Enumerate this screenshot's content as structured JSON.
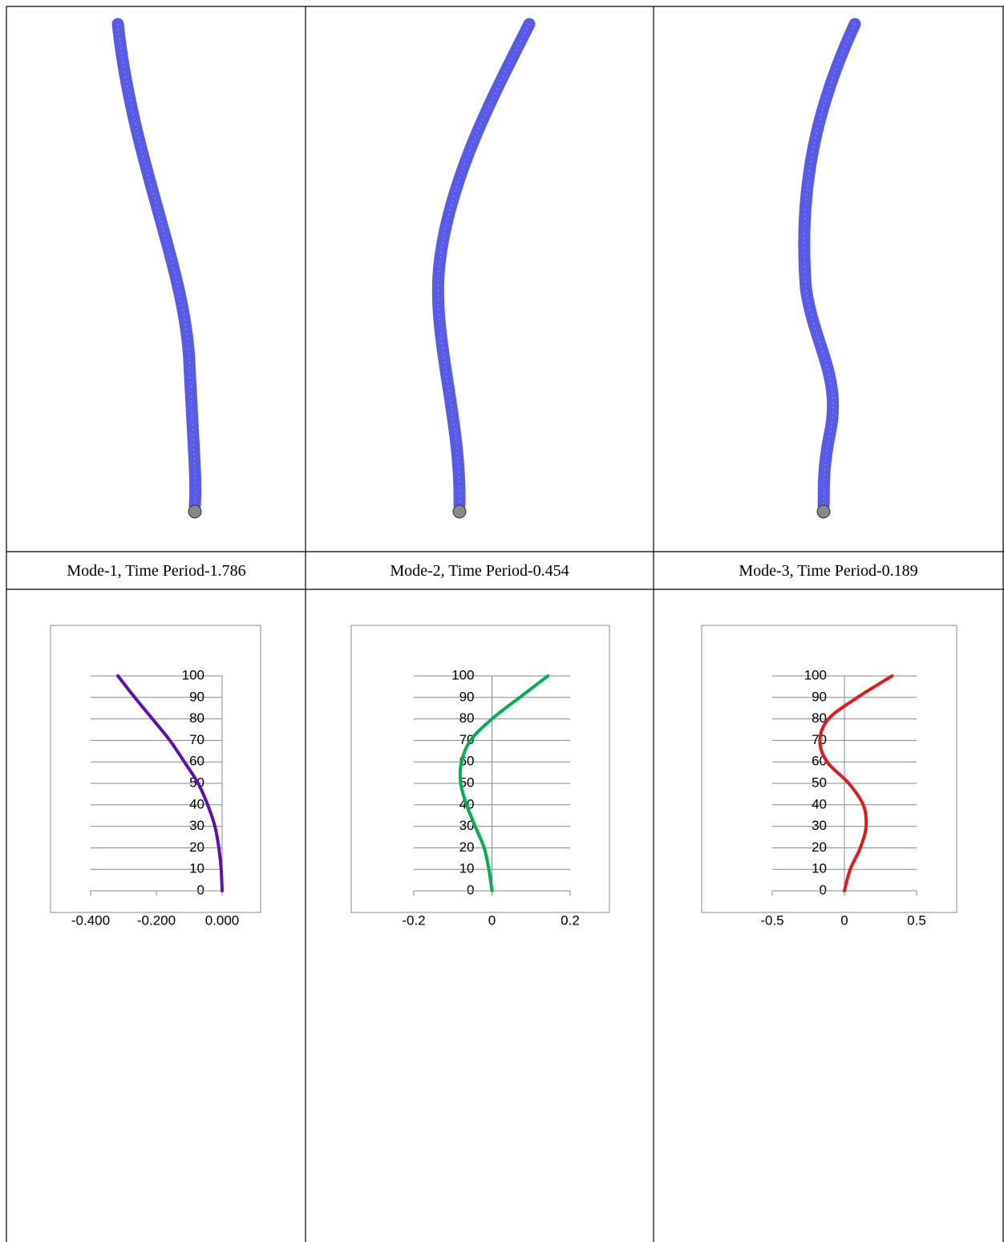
{
  "table": {
    "captions": [
      "Mode-1, Time Period-1.786",
      "Mode-2, Time Period-0.454",
      "Mode-3, Time Period-0.189"
    ]
  },
  "chart_data": [
    {
      "type": "line",
      "color": "#5b0fb5",
      "x": [
        0,
        -0.003,
        -0.01,
        -0.022,
        -0.044,
        -0.073,
        -0.115,
        -0.159,
        -0.212,
        -0.266,
        -0.317
      ],
      "values": [
        0,
        10,
        20,
        30,
        40,
        50,
        60,
        70,
        80,
        90,
        100
      ],
      "xlim": [
        -0.4,
        0
      ],
      "xticks": [
        {
          "value": -0.4,
          "label": "-0.400"
        },
        {
          "value": -0.2,
          "label": "-0.200"
        },
        {
          "value": 0,
          "label": "0.000"
        }
      ],
      "ylim": [
        0,
        100
      ],
      "yticks": [
        0,
        10,
        20,
        30,
        40,
        50,
        60,
        70,
        80,
        90,
        100
      ],
      "grid": true
    },
    {
      "type": "line",
      "color": "#00b050",
      "x": [
        0,
        -0.008,
        -0.02,
        -0.043,
        -0.065,
        -0.08,
        -0.078,
        -0.055,
        0,
        0.071,
        0.143
      ],
      "values": [
        0,
        10,
        20,
        30,
        40,
        50,
        60,
        70,
        80,
        90,
        100
      ],
      "xlim": [
        -0.2,
        0.2
      ],
      "xticks": [
        -0.2,
        0,
        0.2
      ],
      "ylim": [
        0,
        100
      ],
      "yticks": [
        0,
        10,
        20,
        30,
        40,
        50,
        60,
        70,
        80,
        90,
        100
      ],
      "grid": true
    },
    {
      "type": "line",
      "color": "#e31a1c",
      "x": [
        0,
        0.04,
        0.11,
        0.15,
        0.13,
        0.03,
        -0.12,
        -0.17,
        -0.11,
        0.09,
        0.33
      ],
      "values": [
        0,
        10,
        20,
        30,
        40,
        50,
        60,
        70,
        80,
        90,
        100
      ],
      "xlim": [
        -0.5,
        0.5
      ],
      "xticks": [
        -0.5,
        0,
        0.5
      ],
      "ylim": [
        0,
        100
      ],
      "yticks": [
        0,
        10,
        20,
        30,
        40,
        50,
        60,
        70,
        80,
        90,
        100
      ],
      "grid": true
    }
  ]
}
